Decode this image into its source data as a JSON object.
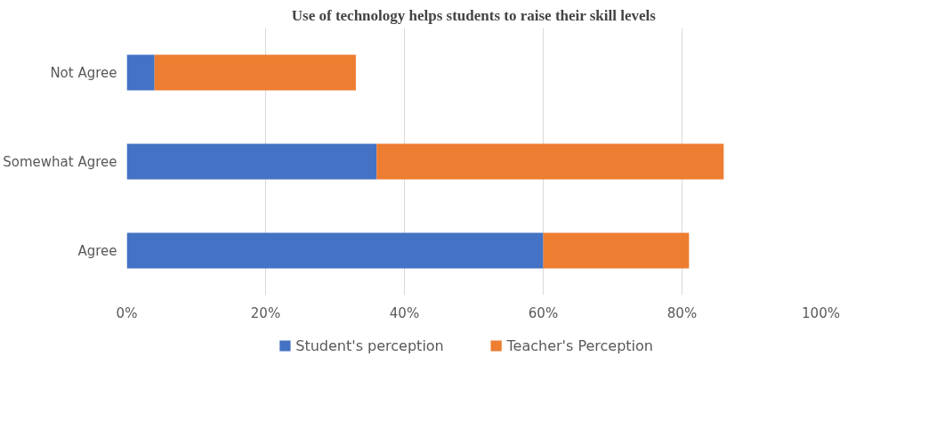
{
  "chart_data": {
    "type": "bar",
    "orientation": "horizontal",
    "stacked": true,
    "title": "Use of technology helps students to raise their skill levels",
    "categories": [
      "Not Agree",
      "Somewhat Agree",
      "Agree"
    ],
    "series": [
      {
        "name": "Student's perception",
        "color": "#4472c4",
        "values": [
          4,
          36,
          60
        ]
      },
      {
        "name": "Teacher's Perception",
        "color": "#ed7d31",
        "values": [
          29,
          50,
          21
        ]
      }
    ],
    "xlim": [
      0,
      100
    ],
    "xticks": [
      {
        "value": 0,
        "label": "0%"
      },
      {
        "value": 20,
        "label": "20%"
      },
      {
        "value": 40,
        "label": "40%"
      },
      {
        "value": 60,
        "label": "60%"
      },
      {
        "value": 80,
        "label": "80%"
      },
      {
        "value": 100,
        "label": "100%"
      }
    ],
    "grid": "x",
    "legend": "bottom"
  }
}
